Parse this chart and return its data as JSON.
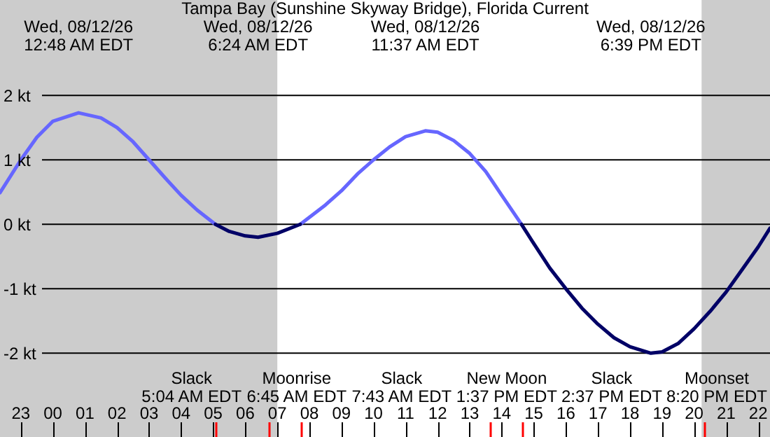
{
  "chart_data": {
    "type": "line",
    "title": "Tampa Bay (Sunshine Skyway Bridge), Florida Current",
    "xlim": [
      "--08-11T22:21",
      "--08-12T22:22"
    ],
    "ylim": [
      -3.3,
      3.48
    ],
    "xticks": [
      {
        "value": "--08-11T23:00",
        "label": "23"
      },
      {
        "value": "--08-12T00:00",
        "label": "00"
      },
      {
        "value": "--08-12T01:00",
        "label": "01"
      },
      {
        "value": "--08-12T02:00",
        "label": "02"
      },
      {
        "value": "--08-12T03:00",
        "label": "03"
      },
      {
        "value": "--08-12T04:00",
        "label": "04"
      },
      {
        "value": "--08-12T05:00",
        "label": "05"
      },
      {
        "value": "--08-12T05:04",
        "label": null
      },
      {
        "value": "--08-12T06:00",
        "label": "06"
      },
      {
        "value": "--08-12T06:45",
        "label": null
      },
      {
        "value": "--08-12T07:00",
        "label": "07"
      },
      {
        "value": "--08-12T07:43",
        "label": null
      },
      {
        "value": "--08-12T08:00",
        "label": "08"
      },
      {
        "value": "--08-12T09:00",
        "label": "09"
      },
      {
        "value": "--08-12T10:00",
        "label": "10"
      },
      {
        "value": "--08-12T11:00",
        "label": "11"
      },
      {
        "value": "--08-12T12:00",
        "label": "12"
      },
      {
        "value": "--08-12T13:00",
        "label": "13"
      },
      {
        "value": "--08-12T13:37",
        "label": null
      },
      {
        "value": "--08-12T14:00",
        "label": "14"
      },
      {
        "value": "--08-12T14:37",
        "label": null
      },
      {
        "value": "--08-12T15:00",
        "label": "15"
      },
      {
        "value": "--08-12T16:00",
        "label": "16"
      },
      {
        "value": "--08-12T17:00",
        "label": "17"
      },
      {
        "value": "--08-12T18:00",
        "label": "18"
      },
      {
        "value": "--08-12T19:00",
        "label": "19"
      },
      {
        "value": "--08-12T20:00",
        "label": "20"
      },
      {
        "value": "--08-12T20:20",
        "label": null
      },
      {
        "value": "--08-12T21:00",
        "label": "21"
      },
      {
        "value": "--08-12T22:00",
        "label": "22"
      }
    ],
    "x2lim": [
      "--08-11T22:21",
      "--08-12T22:22"
    ],
    "x2ticks": [
      {
        "value": "--08-12T00:48",
        "label": "Wed, 08/12/26\n12:48 AM EDT"
      },
      {
        "value": "--08-12T06:24",
        "label": "Wed, 08/12/26\n6:24 AM EDT"
      },
      {
        "value": "--08-12T11:37",
        "label": "Wed, 08/12/26\n11:37 AM EDT"
      },
      {
        "value": "--08-12T18:39",
        "label": "Wed, 08/12/26\n6:39 PM EDT"
      }
    ],
    "yticks": [
      {
        "value": 2,
        "label": "2 kt"
      },
      {
        "value": 1,
        "label": "1 kt"
      },
      {
        "value": 0,
        "label": "0 kt"
      },
      {
        "value": -1,
        "label": "-1 kt"
      },
      {
        "value": -2,
        "label": "-2 kt"
      }
    ],
    "grid": "y",
    "series": [
      {
        "color": "#6666ff",
        "x": [
          "--08-11T22:21",
          "--08-11T23:00",
          "--08-11T23:30",
          "--08-12T00:00",
          "--08-12T00:48",
          "--08-12T01:30",
          "--08-12T02:00",
          "--08-12T02:30",
          "--08-12T03:00",
          "--08-12T03:30",
          "--08-12T04:00",
          "--08-12T04:30",
          "--08-12T05:04",
          "--08-12T06:24",
          "--08-12T07:43",
          "--08-12T08:30",
          "--08-12T09:00",
          "--08-12T09:30",
          "--08-12T10:00",
          "--08-12T10:30",
          "--08-12T11:00",
          "--08-12T11:37",
          "--08-12T12:00",
          "--08-12T12:30",
          "--08-12T13:00",
          "--08-12T13:30",
          "--08-12T14:00",
          "--08-12T14:37"
        ],
        "values": [
          0.49,
          1.0,
          1.35,
          1.6,
          1.73,
          1.65,
          1.5,
          1.28,
          1.0,
          0.72,
          0.45,
          0.22,
          0,
          null,
          0,
          0.3,
          0.52,
          0.78,
          1.0,
          1.2,
          1.36,
          1.45,
          1.43,
          1.3,
          1.1,
          0.82,
          0.45,
          0
        ]
      },
      {
        "color": "#000066",
        "x": [
          "--08-12T05:04",
          "--08-12T05:30",
          "--08-12T06:00",
          "--08-12T06:24",
          "--08-12T07:00",
          "--08-12T07:43",
          "--08-12T11:37",
          "--08-12T14:37",
          "--08-12T15:00",
          "--08-12T15:30",
          "--08-12T16:00",
          "--08-12T16:30",
          "--08-12T17:00",
          "--08-12T17:30",
          "--08-12T18:00",
          "--08-12T18:39",
          "--08-12T19:00",
          "--08-12T19:30",
          "--08-12T20:00",
          "--08-12T20:30",
          "--08-12T21:00",
          "--08-12T21:30",
          "--08-12T22:00",
          "--08-12T22:22"
        ],
        "values": [
          0,
          -0.11,
          -0.18,
          -0.2,
          -0.14,
          0,
          null,
          0,
          -0.3,
          -0.68,
          -1.0,
          -1.3,
          -1.55,
          -1.76,
          -1.9,
          -2.0,
          -1.98,
          -1.85,
          -1.62,
          -1.35,
          -1.05,
          -0.7,
          -0.35,
          -0.06
        ]
      }
    ],
    "bands": [
      {
        "axis": "x",
        "from": "--08-11T22:21",
        "to": "--08-12T07:00",
        "color": "#cccccc"
      },
      {
        "axis": "x",
        "from": "--08-12T20:14",
        "to": "--08-12T22:22",
        "color": "#cccccc"
      }
    ],
    "annotations": [
      "Slack\n5:04 AM EDT",
      "Moonrise\n6:45 AM EDT",
      "Slack\n7:43 AM EDT",
      "New Moon\n1:37 PM EDT",
      "Slack\n2:37 PM EDT",
      "Moonset\n8:20 PM EDT"
    ]
  }
}
